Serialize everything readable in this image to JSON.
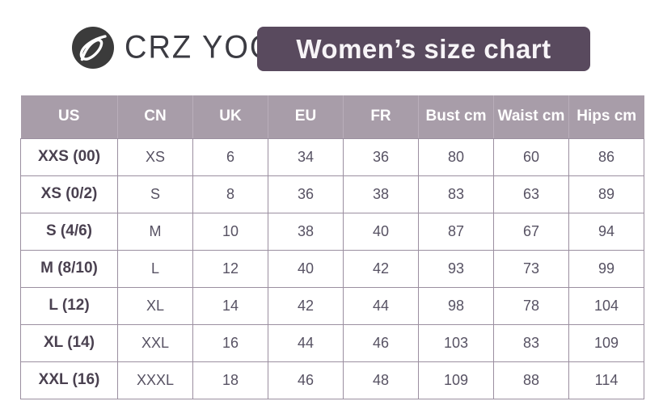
{
  "brand": {
    "name": "CRZ YOGA",
    "logo_icon": "leaf-swoosh-in-circle",
    "logo_bg_color": "#3b3b3b",
    "logo_mark_color": "#ffffff"
  },
  "title": "Women’s size chart",
  "colors": {
    "banner_bg": "#594a5e",
    "banner_text": "#f7f4f7",
    "table_header_bg": "#a89da9",
    "table_header_text": "#ffffff",
    "table_border": "#9b8fa0",
    "size_label_text": "#4a4150",
    "cell_text": "#575263",
    "brand_text": "#3b3b42"
  },
  "chart_data": {
    "type": "table",
    "title": "Women’s size chart",
    "columns": [
      "US",
      "CN",
      "UK",
      "EU",
      "FR",
      "Bust cm",
      "Waist cm",
      "Hips cm"
    ],
    "rows": [
      [
        "XXS (00)",
        "XS",
        "6",
        "34",
        "36",
        "80",
        "60",
        "86"
      ],
      [
        "XS (0/2)",
        "S",
        "8",
        "36",
        "38",
        "83",
        "63",
        "89"
      ],
      [
        "S (4/6)",
        "M",
        "10",
        "38",
        "40",
        "87",
        "67",
        "94"
      ],
      [
        "M (8/10)",
        "L",
        "12",
        "40",
        "42",
        "93",
        "73",
        "99"
      ],
      [
        "L (12)",
        "XL",
        "14",
        "42",
        "44",
        "98",
        "78",
        "104"
      ],
      [
        "XL (14)",
        "XXL",
        "16",
        "44",
        "46",
        "103",
        "83",
        "109"
      ],
      [
        "XXL (16)",
        "XXXL",
        "18",
        "46",
        "48",
        "109",
        "88",
        "114"
      ]
    ]
  }
}
